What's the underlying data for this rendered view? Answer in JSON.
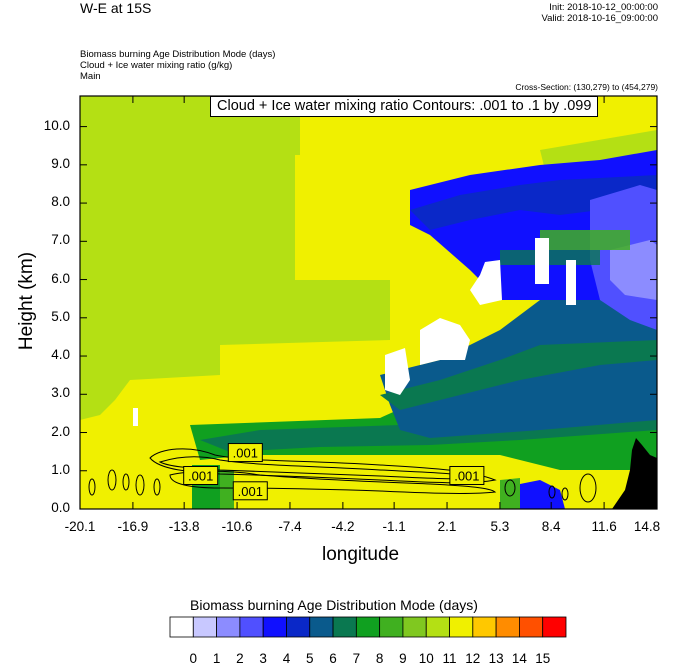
{
  "header": {
    "title": "W-E at 15S",
    "init_line": "Init: 2018-10-12_00:00:00",
    "valid_line": "Valid: 2018-10-16_09:00:00",
    "field1": "Biomass burning Age Distribution Mode   (days)",
    "field2": "Cloud + Ice water mixing ratio   (g/kg)",
    "field3": "Main",
    "cross_section": "Cross-Section: (130,279) to (454,279)"
  },
  "chart_data": {
    "type": "heatmap",
    "title": "Cloud + Ice water mixing ratio Contours: .001 to .1 by .099",
    "xlabel": "longitude",
    "ylabel": "Height (km)",
    "x_ticks": [
      "-20.1",
      "-16.9",
      "-13.8",
      "-10.6",
      "-7.4",
      "-4.2",
      "-1.1",
      "2.1",
      "5.3",
      "8.4",
      "11.6",
      "14.8"
    ],
    "y_ticks": [
      "0.0",
      "1.0",
      "2.0",
      "3.0",
      "4.0",
      "5.0",
      "6.0",
      "7.0",
      "8.0",
      "9.0",
      "10.0"
    ],
    "xlim": [
      -20.1,
      14.8
    ],
    "ylim": [
      0,
      10.8
    ],
    "contour_labels": [
      {
        "text": ".001",
        "x": -10.1,
        "y": 1.45
      },
      {
        "text": ".001",
        "x": -12.8,
        "y": 0.85
      },
      {
        "text": ".001",
        "x": -9.8,
        "y": 0.45
      },
      {
        "text": ".001",
        "x": 3.3,
        "y": 0.85
      }
    ],
    "colorbar": {
      "title": "Biomass burning Age Distribution Mode  (days)",
      "labels": [
        "0",
        "1",
        "2",
        "3",
        "4",
        "5",
        "6",
        "7",
        "8",
        "9",
        "10",
        "11",
        "12",
        "13",
        "14",
        "15"
      ],
      "colors": [
        "#ffffff",
        "#c8c8ff",
        "#8c8cff",
        "#5050ff",
        "#1010ff",
        "#0a28c8",
        "#0a5a8c",
        "#0a7850",
        "#10a020",
        "#40b020",
        "#80c820",
        "#b4e014",
        "#f0f000",
        "#ffc800",
        "#ff8c00",
        "#ff5000",
        "#ff0000"
      ]
    }
  }
}
